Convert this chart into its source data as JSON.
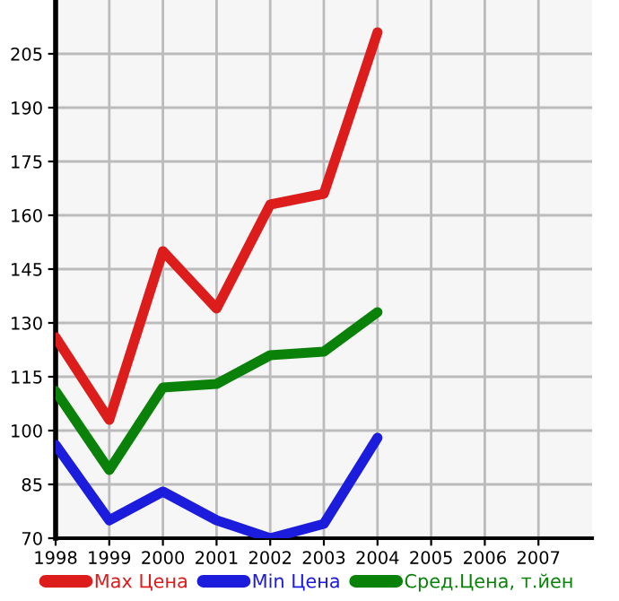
{
  "chart_data": {
    "type": "line",
    "x": [
      1998,
      1999,
      2000,
      2001,
      2002,
      2003,
      2004
    ],
    "series": [
      {
        "name": "Max Цена",
        "color": "#dd1c1c",
        "values": [
          126,
          103,
          150,
          134,
          163,
          166,
          211
        ]
      },
      {
        "name": "Min Цена",
        "color": "#1c1cdd",
        "values": [
          96,
          75,
          83,
          75,
          70,
          74,
          98
        ]
      },
      {
        "name": "Сред.Цена, т.йен",
        "color": "#0a820a",
        "values": [
          111,
          89,
          112,
          113,
          121,
          122,
          133
        ]
      }
    ],
    "xlim": [
      1998,
      2008
    ],
    "xticks": [
      1998,
      1999,
      2000,
      2001,
      2002,
      2003,
      2004,
      2005,
      2006,
      2007
    ],
    "ylim": [
      70,
      220
    ],
    "yticks": [
      70,
      85,
      100,
      115,
      130,
      145,
      160,
      175,
      190,
      205
    ],
    "grid": true,
    "legend": "bottom",
    "marker": "none",
    "line_style": "solid"
  }
}
